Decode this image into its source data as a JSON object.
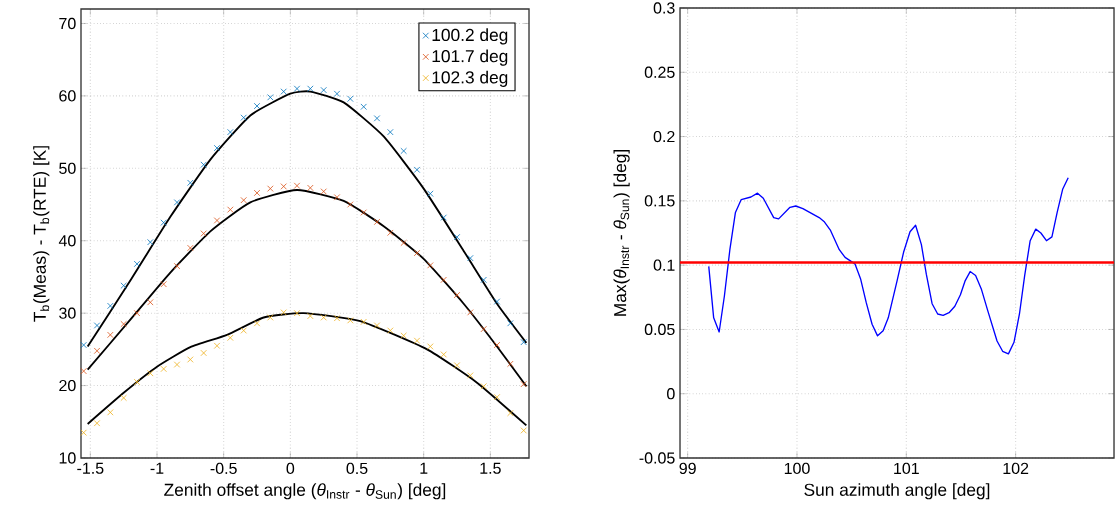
{
  "chart_data": [
    {
      "type": "scatter",
      "xlabel": "Zenith offset angle (*θ*$_{Instr}$ - *θ*$_{Sun}$) [deg]",
      "ylabel": "T$_{b}$(Meas) - T$_{b}$(RTE) [K]",
      "xlim": [
        -1.57,
        1.79
      ],
      "ylim": [
        10,
        72
      ],
      "xticks": [
        -1.5,
        -1,
        -0.5,
        0,
        0.5,
        1,
        1.5
      ],
      "yticks": [
        10,
        20,
        30,
        40,
        50,
        60,
        70
      ],
      "grid": true,
      "legend": "top right",
      "x": [
        -1.55,
        -1.45,
        -1.35,
        -1.25,
        -1.15,
        -1.05,
        -0.95,
        -0.85,
        -0.75,
        -0.65,
        -0.55,
        -0.45,
        -0.35,
        -0.25,
        -0.15,
        -0.05,
        0.05,
        0.15,
        0.25,
        0.35,
        0.45,
        0.55,
        0.65,
        0.75,
        0.85,
        0.95,
        1.05,
        1.15,
        1.25,
        1.35,
        1.45,
        1.55,
        1.65,
        1.75
      ],
      "series": [
        {
          "name": "100.2 deg",
          "marker": "cross",
          "color": "#0072bd",
          "values": [
            25.6,
            28.3,
            31.0,
            33.8,
            36.8,
            39.8,
            42.5,
            45.3,
            48.0,
            50.5,
            52.8,
            55.0,
            57.0,
            58.6,
            59.8,
            60.6,
            61.0,
            61.0,
            60.8,
            60.3,
            59.6,
            58.5,
            56.9,
            55.0,
            52.4,
            49.8,
            46.5,
            43.2,
            40.5,
            37.6,
            34.6,
            31.6,
            28.6,
            26.0
          ]
        },
        {
          "name": "101.7 deg",
          "marker": "cross",
          "color": "#d95319",
          "values": [
            22.0,
            24.8,
            27.0,
            28.5,
            30.0,
            31.5,
            34.0,
            36.5,
            39.0,
            41.0,
            42.8,
            44.3,
            45.6,
            46.6,
            47.2,
            47.5,
            47.6,
            47.3,
            46.8,
            46.0,
            45.0,
            43.9,
            42.6,
            41.1,
            39.7,
            38.3,
            36.6,
            34.6,
            32.5,
            30.1,
            27.8,
            25.6,
            23.0,
            20.2
          ]
        },
        {
          "name": "102.3 deg",
          "marker": "cross",
          "color": "#edb120",
          "values": [
            13.5,
            14.8,
            16.3,
            18.3,
            20.5,
            21.7,
            22.3,
            22.9,
            23.6,
            24.5,
            25.5,
            26.6,
            27.6,
            28.6,
            29.4,
            30.1,
            30.0,
            29.6,
            29.4,
            29.3,
            29.0,
            28.8,
            28.3,
            27.6,
            26.9,
            26.2,
            25.4,
            24.3,
            22.8,
            21.4,
            19.9,
            18.4,
            16.2,
            13.8
          ]
        },
        {
          "type": "line",
          "color": "#000000",
          "x": [
            -1.52,
            -1.2,
            -0.9,
            -0.6,
            -0.3,
            0,
            0.15,
            0.4,
            0.7,
            1.0,
            1.3,
            1.55,
            1.77
          ],
          "values": [
            25.4,
            34.5,
            43.3,
            51.2,
            57.3,
            60.3,
            60.6,
            59.1,
            54.4,
            47.2,
            38.6,
            31.3,
            25.9
          ]
        },
        {
          "type": "line",
          "color": "#000000",
          "x": [
            -1.52,
            -1.2,
            -0.9,
            -0.6,
            -0.3,
            0.05,
            0.4,
            0.7,
            1.0,
            1.3,
            1.55,
            1.77
          ],
          "values": [
            22.2,
            29.1,
            35.6,
            41.3,
            45.3,
            47.0,
            45.5,
            42.0,
            37.5,
            31.3,
            25.4,
            19.9
          ]
        },
        {
          "type": "line",
          "color": "#000000",
          "x": [
            -1.52,
            -1.25,
            -1.0,
            -0.75,
            -0.475,
            -0.2,
            0.1,
            0.525,
            1.025,
            1.4,
            1.77
          ],
          "values": [
            14.7,
            19.0,
            22.6,
            25.3,
            27.0,
            29.4,
            30.0,
            28.9,
            25.0,
            20.4,
            14.5
          ]
        }
      ]
    },
    {
      "type": "line",
      "xlabel": "Sun azimuth angle [deg]",
      "ylabel": "Max(*θ*$_{Instr}$ - *θ*$_{Sun}$) [deg]",
      "xlim": [
        98.93,
        102.9
      ],
      "ylim": [
        -0.05,
        0.3
      ],
      "xticks": [
        99,
        100,
        101,
        102
      ],
      "yticks": [
        -0.05,
        0,
        0.05,
        0.1,
        0.15,
        0.2,
        0.25,
        0.3
      ],
      "grid": true,
      "x": [
        99.193,
        99.238,
        99.288,
        99.336,
        99.386,
        99.437,
        99.49,
        99.579,
        99.639,
        99.692,
        99.787,
        99.832,
        99.936,
        99.989,
        100.054,
        100.203,
        100.247,
        100.307,
        100.387,
        100.44,
        100.53,
        100.583,
        100.633,
        100.687,
        100.737,
        100.788,
        100.835,
        100.916,
        100.975,
        101.034,
        101.085,
        101.138,
        101.183,
        101.236,
        101.287,
        101.337,
        101.391,
        101.444,
        101.495,
        101.539,
        101.584,
        101.634,
        101.688,
        101.747,
        101.83,
        101.881,
        101.934,
        101.985,
        102.035,
        102.083,
        102.133,
        102.184,
        102.231,
        102.282,
        102.332,
        102.38,
        102.43,
        102.481
      ],
      "series": [
        {
          "color": "#0000ff",
          "values": [
            0.099,
            0.059,
            0.048,
            0.076,
            0.112,
            0.141,
            0.151,
            0.153,
            0.156,
            0.152,
            0.137,
            0.136,
            0.145,
            0.146,
            0.144,
            0.137,
            0.134,
            0.127,
            0.112,
            0.106,
            0.101,
            0.089,
            0.071,
            0.054,
            0.045,
            0.049,
            0.059,
            0.088,
            0.11,
            0.126,
            0.131,
            0.116,
            0.093,
            0.07,
            0.062,
            0.061,
            0.063,
            0.068,
            0.077,
            0.088,
            0.095,
            0.092,
            0.081,
            0.064,
            0.041,
            0.033,
            0.031,
            0.04,
            0.062,
            0.092,
            0.119,
            0.128,
            0.125,
            0.119,
            0.122,
            0.141,
            0.159,
            0.168
          ]
        }
      ],
      "ref_lines": [
        {
          "axis": "y",
          "value": 0.102,
          "color": "#ff0000"
        }
      ]
    }
  ]
}
